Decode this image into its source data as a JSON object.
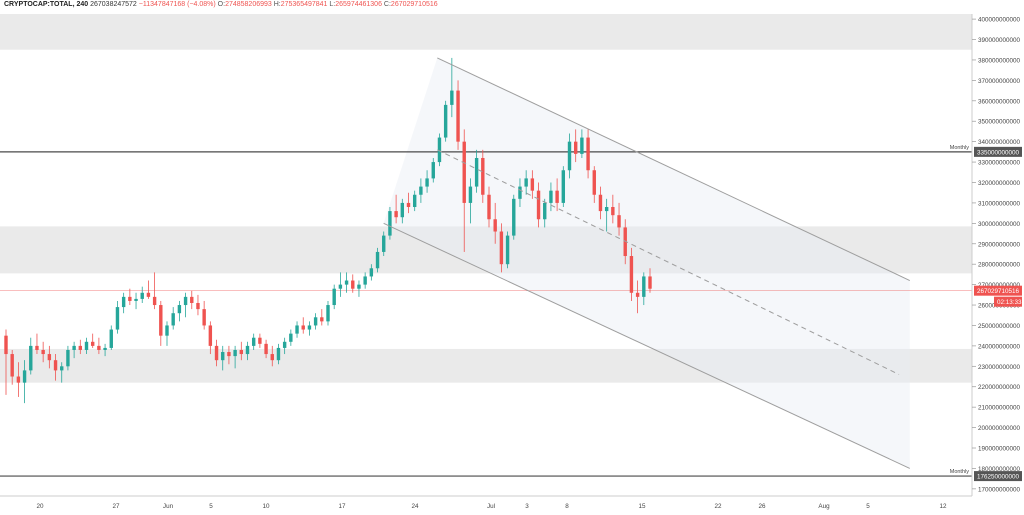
{
  "header": {
    "symbol": "CRYPTOCAP:TOTAL, 240",
    "last": "267038247572",
    "change": "−11347847168 (−4.08%)",
    "open_label": "O:",
    "open": "274858206993",
    "high_label": "H:",
    "high": "275365497841",
    "low_label": "L:",
    "low": "265974461306",
    "close_label": "C:",
    "close": "267029710516"
  },
  "chart_data": {
    "type": "candlestick",
    "y_axis": {
      "ticks": [
        170000000000,
        180000000000,
        190000000000,
        200000000000,
        210000000000,
        220000000000,
        230000000000,
        240000000000,
        250000000000,
        260000000000,
        270000000000,
        280000000000,
        290000000000,
        300000000000,
        310000000000,
        320000000000,
        330000000000,
        340000000000,
        350000000000,
        360000000000,
        370000000000,
        380000000000,
        390000000000,
        400000000000
      ],
      "ylim": [
        166500000000,
        402500000000
      ]
    },
    "x_axis": {
      "ticks": [
        "20",
        "27",
        "Jun",
        "5",
        "10",
        "17",
        "24",
        "Jul",
        "3",
        "8",
        "15",
        "22",
        "26",
        "Aug",
        "5",
        "12"
      ]
    },
    "horizontal_levels": [
      {
        "label": "Monthly",
        "value_label": "335000000000",
        "value": 335000000000
      },
      {
        "label": "Monthly",
        "value_label": "176250000000",
        "value": 176250000000
      }
    ],
    "zones": [
      {
        "from": 385000000000,
        "to": 402500000000
      },
      {
        "from": 275500000000,
        "to": 298500000000
      },
      {
        "from": 222000000000,
        "to": 238500000000
      }
    ],
    "current_price": {
      "value_label": "267029710516",
      "value": 267029710516,
      "countdown": "02:13:33"
    },
    "channel": {
      "upper": {
        "start": [
          "Jun 26",
          381000000000
        ],
        "end": [
          "Aug 9",
          272000000000
        ]
      },
      "lower": {
        "start": [
          "Jun 21",
          300000000000
        ],
        "end": [
          "Aug 9",
          180000000000
        ]
      },
      "mid": {
        "start": [
          "Jun 26",
          336000000000
        ],
        "end": [
          "Aug 8",
          226000000000
        ]
      }
    },
    "colors": {
      "up": "#26a69a",
      "down": "#ef5350",
      "zone": "#e6e6e6",
      "channel": "#9e9e9e",
      "price": "#ef5350"
    },
    "candles": [
      [
        245,
        248,
        216,
        236
      ],
      [
        236,
        238,
        221,
        225
      ],
      [
        225,
        232,
        215,
        222
      ],
      [
        222,
        233,
        212,
        228
      ],
      [
        228,
        244,
        226,
        240
      ],
      [
        240,
        246,
        236,
        238
      ],
      [
        238,
        242,
        232,
        236
      ],
      [
        236,
        240,
        229,
        233
      ],
      [
        233,
        236,
        223,
        228
      ],
      [
        228,
        232,
        222,
        230
      ],
      [
        230,
        240,
        228,
        238
      ],
      [
        238,
        242,
        234,
        240
      ],
      [
        240,
        243,
        236,
        238
      ],
      [
        238,
        244,
        236,
        242
      ],
      [
        242,
        246,
        239,
        240
      ],
      [
        240,
        244,
        236,
        238
      ],
      [
        238,
        241,
        235,
        239
      ],
      [
        239,
        250,
        238,
        248
      ],
      [
        248,
        262,
        246,
        259
      ],
      [
        259,
        266,
        256,
        264
      ],
      [
        264,
        268,
        260,
        262
      ],
      [
        262,
        266,
        258,
        263
      ],
      [
        263,
        269,
        261,
        266
      ],
      [
        266,
        272,
        263,
        264
      ],
      [
        264,
        276,
        258,
        260
      ],
      [
        260,
        262,
        240,
        245
      ],
      [
        245,
        252,
        240,
        250
      ],
      [
        250,
        259,
        248,
        256
      ],
      [
        256,
        262,
        252,
        260
      ],
      [
        260,
        266,
        254,
        264
      ],
      [
        264,
        267,
        258,
        261
      ],
      [
        261,
        265,
        255,
        258
      ],
      [
        258,
        262,
        248,
        250
      ],
      [
        250,
        252,
        236,
        240
      ],
      [
        240,
        243,
        230,
        233
      ],
      [
        233,
        240,
        228,
        237
      ],
      [
        237,
        240,
        231,
        235
      ],
      [
        235,
        240,
        229,
        238
      ],
      [
        238,
        242,
        233,
        236
      ],
      [
        236,
        242,
        233,
        240
      ],
      [
        240,
        246,
        238,
        244
      ],
      [
        244,
        246,
        239,
        241
      ],
      [
        241,
        243,
        234,
        236
      ],
      [
        236,
        240,
        230,
        233
      ],
      [
        233,
        241,
        231,
        239
      ],
      [
        239,
        244,
        236,
        242
      ],
      [
        242,
        248,
        240,
        246
      ],
      [
        246,
        252,
        244,
        250
      ],
      [
        250,
        254,
        246,
        248
      ],
      [
        248,
        252,
        245,
        250
      ],
      [
        250,
        256,
        248,
        254
      ],
      [
        254,
        258,
        250,
        252
      ],
      [
        252,
        262,
        250,
        260
      ],
      [
        260,
        270,
        258,
        268
      ],
      [
        268,
        276,
        264,
        270
      ],
      [
        270,
        276,
        266,
        272
      ],
      [
        272,
        275,
        266,
        268
      ],
      [
        268,
        272,
        264,
        270
      ],
      [
        270,
        276,
        268,
        274
      ],
      [
        274,
        280,
        272,
        278
      ],
      [
        278,
        288,
        276,
        286
      ],
      [
        286,
        296,
        284,
        294
      ],
      [
        294,
        308,
        292,
        306
      ],
      [
        306,
        314,
        300,
        303
      ],
      [
        303,
        312,
        300,
        310
      ],
      [
        310,
        315,
        305,
        308
      ],
      [
        308,
        316,
        306,
        314
      ],
      [
        314,
        322,
        310,
        318
      ],
      [
        318,
        326,
        315,
        322
      ],
      [
        322,
        332,
        320,
        330
      ],
      [
        330,
        344,
        328,
        342
      ],
      [
        342,
        360,
        340,
        358
      ],
      [
        358,
        381,
        352,
        365
      ],
      [
        365,
        370,
        336,
        340
      ],
      [
        340,
        346,
        286,
        310
      ],
      [
        310,
        322,
        300,
        318
      ],
      [
        318,
        336,
        315,
        332
      ],
      [
        332,
        336,
        310,
        314
      ],
      [
        314,
        318,
        298,
        302
      ],
      [
        302,
        310,
        290,
        296
      ],
      [
        296,
        300,
        276,
        280
      ],
      [
        280,
        296,
        278,
        294
      ],
      [
        294,
        314,
        292,
        312
      ],
      [
        312,
        322,
        308,
        318
      ],
      [
        318,
        326,
        314,
        322
      ],
      [
        322,
        326,
        312,
        316
      ],
      [
        316,
        320,
        298,
        302
      ],
      [
        302,
        312,
        298,
        310
      ],
      [
        310,
        320,
        306,
        316
      ],
      [
        316,
        322,
        306,
        310
      ],
      [
        310,
        328,
        308,
        326
      ],
      [
        326,
        344,
        322,
        340
      ],
      [
        340,
        346,
        330,
        334
      ],
      [
        334,
        346,
        332,
        342
      ],
      [
        342,
        346,
        322,
        326
      ],
      [
        326,
        328,
        310,
        314
      ],
      [
        314,
        318,
        302,
        306
      ],
      [
        306,
        312,
        296,
        308
      ],
      [
        308,
        314,
        300,
        304
      ],
      [
        304,
        310,
        294,
        298
      ],
      [
        298,
        302,
        280,
        284
      ],
      [
        284,
        288,
        262,
        266
      ],
      [
        266,
        272,
        256,
        264
      ],
      [
        264,
        276,
        260,
        274
      ],
      [
        274,
        278,
        266,
        268
      ]
    ]
  }
}
